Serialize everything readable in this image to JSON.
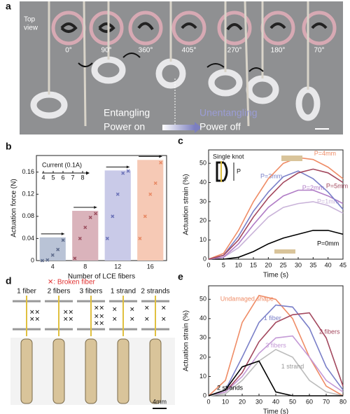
{
  "panel_a": {
    "panel": "a",
    "top_view": [
      "Top",
      "view"
    ],
    "angles": [
      "0°",
      "90°",
      "360°",
      "405°",
      "270°",
      "180°",
      "70°"
    ],
    "entangling": "Entangling",
    "power_on": "Power on",
    "unentangling": "Unentangling",
    "power_off": "Power off"
  },
  "panel_d": {
    "panel": "d",
    "legend": "✕: Broken fiber",
    "columns": [
      "1 fiber",
      "2 fibers",
      "3 fibers",
      "1 strand",
      "2 strands"
    ],
    "scale": "4mm"
  },
  "chart_data": [
    {
      "type": "bar",
      "panel": "b",
      "x_label": "Number of LCE fibers",
      "y_label": "Actuation force (N)",
      "categories": [
        "4",
        "8",
        "12",
        "16"
      ],
      "values": [
        0.042,
        0.09,
        0.163,
        0.182
      ],
      "colors": [
        "#b9c3d6",
        "#dab3bb",
        "#c9cae8",
        "#f6c9b5"
      ],
      "points": [
        [
          0,
          0.001,
          0.01,
          0.02,
          0.037
        ],
        [
          0.004,
          0.04,
          0.06,
          0.078,
          0.085
        ],
        [
          0.04,
          0.08,
          0.12,
          0.158,
          0.162
        ],
        [
          0.04,
          0.08,
          0.12,
          0.14,
          0.177
        ]
      ],
      "point_colors": [
        "#5e6c8c",
        "#9b4f5f",
        "#6c73b8",
        "#e88a66"
      ],
      "inset_title": "Current (0.1A)",
      "inset_ticks": [
        4,
        5,
        6,
        7,
        8
      ],
      "ylim": [
        0,
        0.19
      ],
      "yticks": [
        0,
        0.04,
        0.08,
        0.12,
        0.16
      ]
    },
    {
      "type": "line",
      "panel": "c",
      "x_label": "Time (s)",
      "y_label": "Actuation strain  (%)",
      "inset_title": "Single knot",
      "inset_p": "P",
      "x": [
        0,
        5,
        10,
        15,
        20,
        25,
        30,
        35,
        40,
        45
      ],
      "series": [
        {
          "name": "P=0mm",
          "color": "#000000",
          "values": [
            0,
            0,
            1,
            4,
            8,
            11,
            13,
            15,
            15,
            13
          ]
        },
        {
          "name": "P=1mm",
          "color": "#c9b3d9",
          "values": [
            0,
            1,
            6,
            14,
            22,
            27,
            29,
            30,
            28,
            24
          ]
        },
        {
          "name": "P=2mm",
          "color": "#b07cc6",
          "values": [
            0,
            1,
            8,
            18,
            27,
            33,
            36,
            36,
            33,
            29
          ]
        },
        {
          "name": "P=3mm",
          "color": "#7a7fc8",
          "values": [
            0,
            2,
            12,
            25,
            35,
            43,
            46,
            42,
            35,
            26
          ]
        },
        {
          "name": "P=4mm",
          "color": "#ef8c66",
          "values": [
            0,
            3,
            15,
            30,
            42,
            50,
            53,
            52,
            48,
            42
          ]
        },
        {
          "name": "P=5mm",
          "color": "#a3485e",
          "values": [
            0,
            2,
            10,
            22,
            32,
            40,
            45,
            47,
            45,
            40
          ]
        }
      ],
      "xlim": [
        0,
        45
      ],
      "xticks": [
        0,
        5,
        10,
        15,
        20,
        25,
        30,
        35,
        40,
        45
      ],
      "ylim": [
        0,
        57
      ],
      "yticks": [
        0,
        10,
        20,
        30,
        40,
        50
      ]
    },
    {
      "type": "line",
      "panel": "e",
      "x_label": "Time (s)",
      "y_label": "Actuation strain  (%)",
      "x": [
        0,
        10,
        20,
        30,
        40,
        50,
        60,
        70,
        80
      ],
      "series": [
        {
          "name": "Undamaged shape",
          "color": "#ef8c66",
          "values": [
            0,
            8,
            38,
            52,
            50,
            40,
            20,
            5,
            0
          ]
        },
        {
          "name": "1 fiber",
          "color": "#7a7fc8",
          "values": [
            0,
            3,
            20,
            38,
            47,
            46,
            35,
            15,
            3
          ]
        },
        {
          "name": "2 fibers",
          "color": "#a3485e",
          "values": [
            0,
            2,
            12,
            28,
            38,
            42,
            43,
            30,
            5
          ]
        },
        {
          "name": "3 fibers",
          "color": "#c49ad6",
          "values": [
            0,
            2,
            10,
            22,
            30,
            31,
            20,
            8,
            2
          ]
        },
        {
          "name": "1 strand",
          "color": "#bcbcbc",
          "values": [
            0,
            1,
            8,
            18,
            24,
            20,
            8,
            2,
            0
          ]
        },
        {
          "name": "2 strands",
          "color": "#000000",
          "values": [
            0,
            3,
            15,
            18,
            2,
            0,
            0,
            0,
            0
          ]
        }
      ],
      "xlim": [
        0,
        80
      ],
      "xticks": [
        0,
        10,
        20,
        30,
        40,
        50,
        60,
        70,
        80
      ],
      "ylim": [
        0,
        57
      ],
      "yticks": [
        0,
        10,
        20,
        30,
        40,
        50
      ]
    }
  ]
}
